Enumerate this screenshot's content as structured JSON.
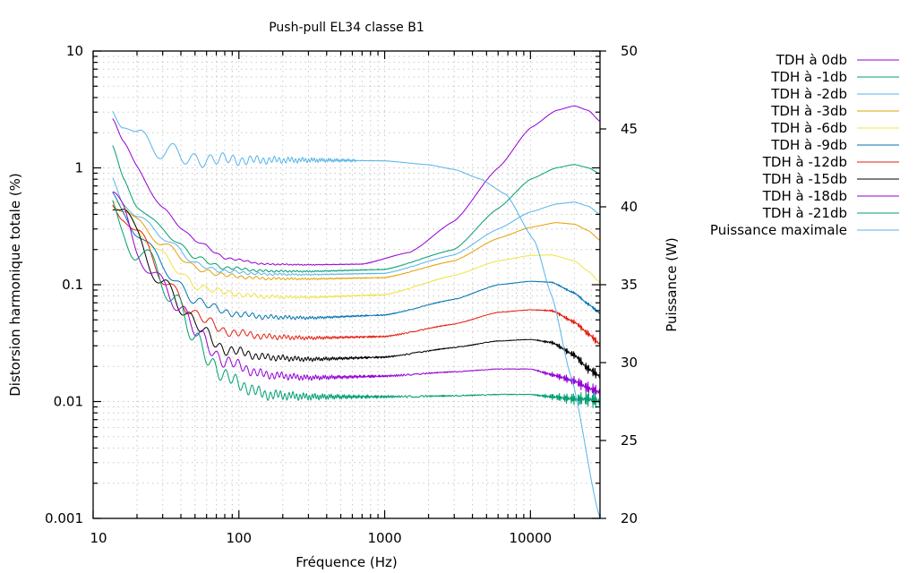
{
  "chart_data": {
    "type": "line",
    "title": "Push-pull EL34 classe B1",
    "xlabel": "Fréquence (Hz)",
    "ylabel": "Distorsion harmonique totale (%)",
    "y2label": "Puissance (W)",
    "xscale": "log",
    "yscale": "log",
    "xlim": [
      10,
      30000
    ],
    "ylim": [
      0.001,
      10
    ],
    "y2lim": [
      20,
      50
    ],
    "grid": true,
    "legend_position": "outside-top-right",
    "x_ticks": [
      10,
      100,
      1000,
      10000
    ],
    "x_tick_labels": [
      "10",
      "100",
      "1000",
      "10000"
    ],
    "y_ticks": [
      0.001,
      0.01,
      0.1,
      1,
      10
    ],
    "y_tick_labels": [
      "0.001",
      "0.01",
      "0.1",
      "1",
      "10"
    ],
    "y2_ticks": [
      20,
      25,
      30,
      35,
      40,
      45,
      50
    ],
    "y2_tick_labels": [
      "20",
      "25",
      "30",
      "35",
      "40",
      "45",
      "50"
    ],
    "series": [
      {
        "name": "TDH à 0db",
        "axis": "y",
        "color": "#9400d3",
        "ripple": 0.04,
        "points": [
          [
            13.6,
            2.6
          ],
          [
            16,
            1.6
          ],
          [
            20,
            1.0
          ],
          [
            30,
            0.45
          ],
          [
            50,
            0.24
          ],
          [
            80,
            0.17
          ],
          [
            150,
            0.15
          ],
          [
            300,
            0.148
          ],
          [
            700,
            0.15
          ],
          [
            1500,
            0.19
          ],
          [
            3000,
            0.35
          ],
          [
            6000,
            1.0
          ],
          [
            10000,
            2.2
          ],
          [
            15000,
            3.1
          ],
          [
            20000,
            3.4
          ],
          [
            25000,
            3.1
          ],
          [
            30000,
            2.5
          ]
        ]
      },
      {
        "name": "TDH à -1db",
        "axis": "y",
        "color": "#009e73",
        "ripple": 0.06,
        "points": [
          [
            13.6,
            1.39
          ],
          [
            16,
            0.8
          ],
          [
            20,
            0.5
          ],
          [
            30,
            0.3
          ],
          [
            50,
            0.17
          ],
          [
            80,
            0.14
          ],
          [
            150,
            0.131
          ],
          [
            300,
            0.13
          ],
          [
            1000,
            0.135
          ],
          [
            3000,
            0.2
          ],
          [
            6000,
            0.45
          ],
          [
            10000,
            0.8
          ],
          [
            15000,
            1.0
          ],
          [
            20000,
            1.07
          ],
          [
            25000,
            1.0
          ],
          [
            30000,
            0.89
          ]
        ]
      },
      {
        "name": "TDH à -2db",
        "axis": "y",
        "color": "#56b4e9",
        "ripple": 0.06,
        "points": [
          [
            13.6,
            0.85
          ],
          [
            16,
            0.55
          ],
          [
            20,
            0.4
          ],
          [
            30,
            0.26
          ],
          [
            50,
            0.15
          ],
          [
            80,
            0.13
          ],
          [
            150,
            0.123
          ],
          [
            300,
            0.122
          ],
          [
            1000,
            0.125
          ],
          [
            3000,
            0.18
          ],
          [
            6000,
            0.3
          ],
          [
            10000,
            0.42
          ],
          [
            15000,
            0.49
          ],
          [
            20000,
            0.51
          ],
          [
            25000,
            0.47
          ],
          [
            30000,
            0.4
          ]
        ]
      },
      {
        "name": "TDH à -3db",
        "axis": "y",
        "color": "#e69f00",
        "ripple": 0.07,
        "points": [
          [
            13.6,
            0.55
          ],
          [
            16,
            0.45
          ],
          [
            20,
            0.35
          ],
          [
            30,
            0.22
          ],
          [
            50,
            0.14
          ],
          [
            80,
            0.12
          ],
          [
            150,
            0.113
          ],
          [
            300,
            0.112
          ],
          [
            1000,
            0.115
          ],
          [
            3000,
            0.16
          ],
          [
            6000,
            0.25
          ],
          [
            10000,
            0.31
          ],
          [
            15000,
            0.34
          ],
          [
            20000,
            0.33
          ],
          [
            25000,
            0.29
          ],
          [
            30000,
            0.24
          ]
        ]
      },
      {
        "name": "TDH à -6db",
        "axis": "y",
        "color": "#f0e442",
        "ripple": 0.1,
        "points": [
          [
            13.6,
            0.5
          ],
          [
            16,
            0.42
          ],
          [
            20,
            0.3
          ],
          [
            30,
            0.17
          ],
          [
            50,
            0.1
          ],
          [
            80,
            0.085
          ],
          [
            150,
            0.079
          ],
          [
            300,
            0.078
          ],
          [
            1000,
            0.082
          ],
          [
            3000,
            0.12
          ],
          [
            6000,
            0.16
          ],
          [
            10000,
            0.178
          ],
          [
            14000,
            0.18
          ],
          [
            20000,
            0.16
          ],
          [
            25000,
            0.13
          ],
          [
            30000,
            0.105
          ]
        ]
      },
      {
        "name": "TDH à -9db",
        "axis": "y",
        "color": "#0072b2",
        "ripple": 0.12,
        "points": [
          [
            13.6,
            0.5
          ],
          [
            16,
            0.4
          ],
          [
            20,
            0.28
          ],
          [
            30,
            0.14
          ],
          [
            50,
            0.075
          ],
          [
            80,
            0.058
          ],
          [
            150,
            0.053
          ],
          [
            300,
            0.052
          ],
          [
            1000,
            0.055
          ],
          [
            3000,
            0.075
          ],
          [
            6000,
            0.1
          ],
          [
            10000,
            0.107
          ],
          [
            14000,
            0.105
          ],
          [
            20000,
            0.085
          ],
          [
            25000,
            0.068
          ],
          [
            30000,
            0.057
          ]
        ]
      },
      {
        "name": "TDH à -12db",
        "axis": "y",
        "color": "#e51e10",
        "ripple": 0.15,
        "points": [
          [
            13.6,
            0.5
          ],
          [
            16,
            0.4
          ],
          [
            20,
            0.26
          ],
          [
            30,
            0.12
          ],
          [
            50,
            0.055
          ],
          [
            80,
            0.04
          ],
          [
            150,
            0.036
          ],
          [
            300,
            0.035
          ],
          [
            1000,
            0.036
          ],
          [
            3000,
            0.046
          ],
          [
            6000,
            0.058
          ],
          [
            10000,
            0.061
          ],
          [
            14000,
            0.06
          ],
          [
            20000,
            0.048
          ],
          [
            25000,
            0.038
          ],
          [
            30000,
            0.031
          ]
        ]
      },
      {
        "name": "TDH à -15db",
        "axis": "y",
        "color": "#000000",
        "ripple": 0.18,
        "points": [
          [
            13.6,
            0.5
          ],
          [
            16,
            0.4
          ],
          [
            20,
            0.25
          ],
          [
            30,
            0.11
          ],
          [
            50,
            0.045
          ],
          [
            80,
            0.028
          ],
          [
            150,
            0.024
          ],
          [
            300,
            0.023
          ],
          [
            1000,
            0.024
          ],
          [
            3000,
            0.029
          ],
          [
            6000,
            0.033
          ],
          [
            10000,
            0.034
          ],
          [
            14000,
            0.032
          ],
          [
            20000,
            0.025
          ],
          [
            25000,
            0.019
          ],
          [
            30000,
            0.0165
          ]
        ]
      },
      {
        "name": "TDH à -18db",
        "axis": "y",
        "color": "#9400d3",
        "ripple": 0.22,
        "points": [
          [
            13.6,
            0.5
          ],
          [
            16,
            0.4
          ],
          [
            20,
            0.24
          ],
          [
            30,
            0.1
          ],
          [
            50,
            0.04
          ],
          [
            80,
            0.022
          ],
          [
            150,
            0.017
          ],
          [
            300,
            0.016
          ],
          [
            1000,
            0.0165
          ],
          [
            3000,
            0.018
          ],
          [
            6000,
            0.019
          ],
          [
            10000,
            0.019
          ],
          [
            14000,
            0.017
          ],
          [
            20000,
            0.015
          ],
          [
            25000,
            0.013
          ],
          [
            30000,
            0.012
          ]
        ]
      },
      {
        "name": "TDH à -21db",
        "axis": "y",
        "color": "#009e73",
        "ripple": 0.28,
        "points": [
          [
            13.6,
            0.5
          ],
          [
            16,
            0.4
          ],
          [
            20,
            0.24
          ],
          [
            30,
            0.1
          ],
          [
            50,
            0.035
          ],
          [
            80,
            0.016
          ],
          [
            150,
            0.0115
          ],
          [
            300,
            0.011
          ],
          [
            1000,
            0.011
          ],
          [
            3000,
            0.0112
          ],
          [
            6000,
            0.0115
          ],
          [
            10000,
            0.0115
          ],
          [
            14000,
            0.011
          ],
          [
            20000,
            0.0105
          ],
          [
            25000,
            0.0105
          ],
          [
            30000,
            0.01
          ]
        ]
      },
      {
        "name": "Puissance maximale",
        "axis": "y2",
        "color": "#56b4e9",
        "ripple": 0.025,
        "points": [
          [
            13.6,
            47.4
          ],
          [
            16,
            46.0
          ],
          [
            20,
            44.2
          ],
          [
            30,
            43.4
          ],
          [
            50,
            43.1
          ],
          [
            100,
            43.0
          ],
          [
            300,
            43.0
          ],
          [
            1000,
            42.95
          ],
          [
            2000,
            42.7
          ],
          [
            3000,
            42.4
          ],
          [
            4500,
            41.8
          ],
          [
            6800,
            40.8
          ],
          [
            10700,
            37.8
          ],
          [
            14000,
            34.3
          ],
          [
            19000,
            29.1
          ],
          [
            30000,
            20.0
          ]
        ]
      }
    ]
  }
}
